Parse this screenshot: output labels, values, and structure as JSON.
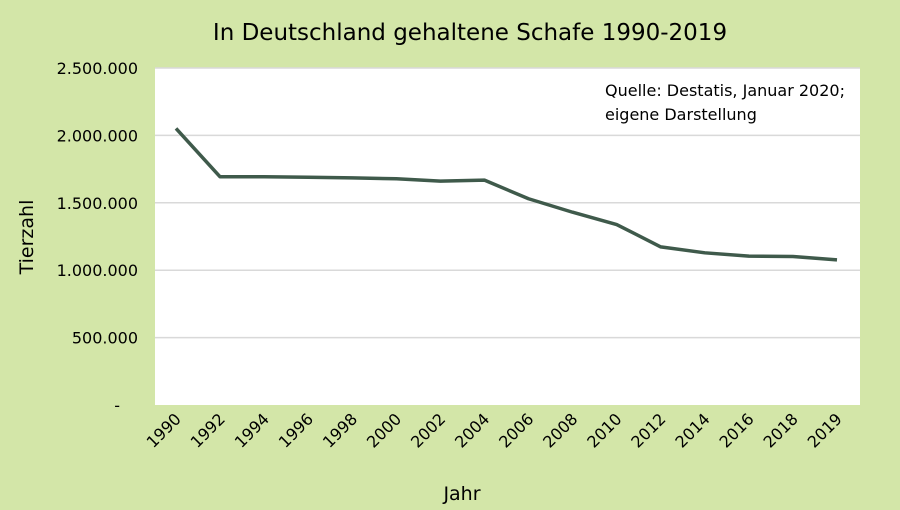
{
  "chart_data": {
    "type": "line",
    "title": "In Deutschland gehaltene Schafe 1990-2019",
    "xlabel": "Jahr",
    "ylabel": "Tierzahl",
    "annotation": [
      "Quelle: Destatis, Januar 2020;",
      "eigene Darstellung"
    ],
    "categories": [
      "1990",
      "1992",
      "1994",
      "1996",
      "1998",
      "2000",
      "2002",
      "2004",
      "2006",
      "2008",
      "2010",
      "2012",
      "2014",
      "2016",
      "2018",
      "2019"
    ],
    "values": [
      2052000,
      1693000,
      1693000,
      1690000,
      1685000,
      1678000,
      1661000,
      1668000,
      1530000,
      1430000,
      1339000,
      1173000,
      1129000,
      1104000,
      1102000,
      1077000
    ],
    "ylim": [
      0,
      2500000
    ],
    "yticks": [
      0,
      500000,
      1000000,
      1500000,
      2000000,
      2500000
    ],
    "ytick_labels": [
      "-",
      "500.000",
      "1.000.000",
      "1.500.000",
      "2.000.000",
      "2.500.000"
    ],
    "grid": true,
    "legend": "none",
    "colors": {
      "line": "#3f5a4b",
      "background": "#d3e6a8",
      "plot": "#ffffff",
      "grid": "#d9d9d9"
    }
  }
}
